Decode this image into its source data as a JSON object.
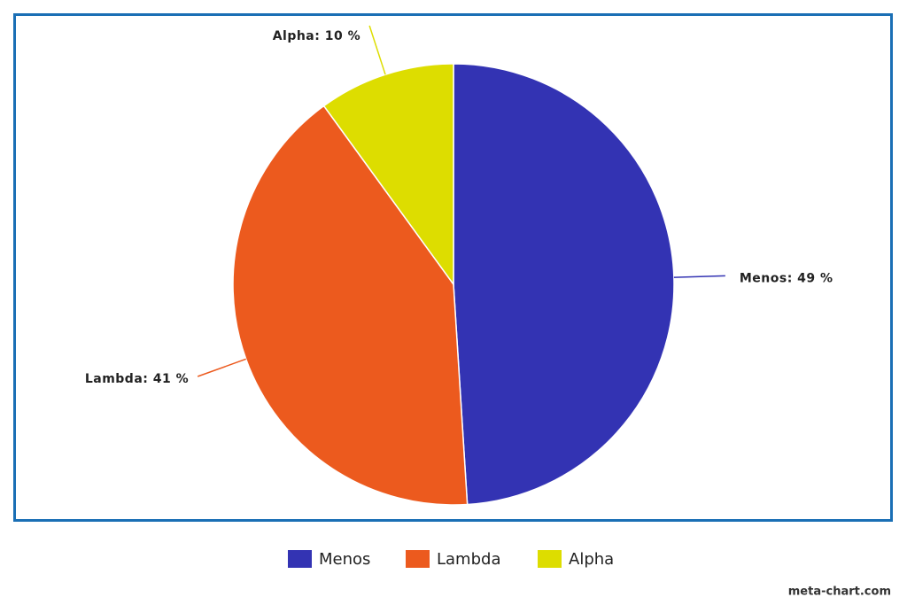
{
  "chart_data": {
    "type": "pie",
    "categories": [
      "Menos",
      "Lambda",
      "Alpha"
    ],
    "values": [
      49,
      41,
      10
    ],
    "value_labels": [
      "Menos: 49 %",
      "Lambda: 41 %",
      "Alpha: 10 %"
    ],
    "colors": [
      "#3333b3",
      "#ec5a1e",
      "#dddd00"
    ],
    "legend": "bottom",
    "watermark": "meta-chart.com"
  }
}
